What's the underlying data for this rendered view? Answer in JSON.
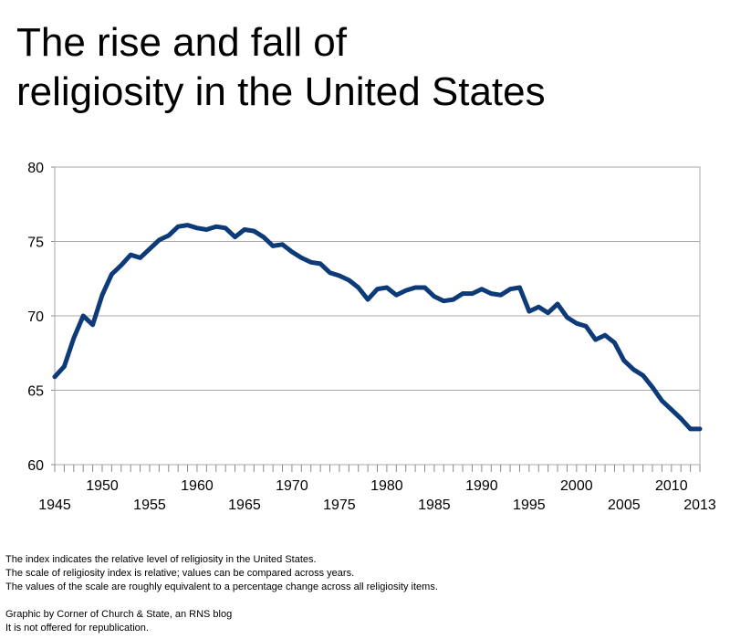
{
  "title_lines": [
    "The rise and fall of",
    "religiosity in the United States"
  ],
  "notes": [
    "The index indicates the relative level of religiosity in the United States.",
    "The scale of religiosity index is relative; values can be compared across years.",
    "The values of the scale are roughly equivalent to a percentage change across all religiosity items."
  ],
  "credits": [
    "Graphic by Corner of Church & State, an RNS blog",
    "It is not offered for republication."
  ],
  "chart_data": {
    "type": "line",
    "title": "The rise and fall of religiosity in the United States",
    "xlabel": "",
    "ylabel": "",
    "xlim": [
      1945,
      2013
    ],
    "ylim": [
      60,
      80
    ],
    "yticks": [
      60,
      65,
      70,
      75,
      80
    ],
    "xtick_labels_low": [
      1945,
      1955,
      1965,
      1975,
      1985,
      1995,
      2005,
      2013
    ],
    "xtick_labels_high": [
      1950,
      1960,
      1970,
      1980,
      1990,
      2000,
      2010
    ],
    "grid": true,
    "line_color": "#0d3a78",
    "series": [
      {
        "x": [
          1945,
          1946,
          1947,
          1948,
          1949,
          1950,
          1951,
          1952,
          1953,
          1954,
          1955,
          1956,
          1957,
          1958,
          1959,
          1960,
          1961,
          1962,
          1963,
          1964,
          1965,
          1966,
          1967,
          1968,
          1969,
          1970,
          1971,
          1972,
          1973,
          1974,
          1975,
          1976,
          1977,
          1978,
          1979,
          1980,
          1981,
          1982,
          1983,
          1984,
          1985,
          1986,
          1987,
          1988,
          1989,
          1990,
          1991,
          1992,
          1993,
          1994,
          1995,
          1996,
          1997,
          1998,
          1999,
          2000,
          2001,
          2002,
          2003,
          2004,
          2005,
          2006,
          2007,
          2008,
          2009,
          2010,
          2011,
          2012,
          2013
        ],
        "values": [
          65.9,
          66.6,
          68.5,
          70.0,
          69.4,
          71.4,
          72.8,
          73.4,
          74.1,
          73.9,
          74.5,
          75.1,
          75.4,
          76.0,
          76.1,
          75.9,
          75.8,
          76.0,
          75.9,
          75.3,
          75.8,
          75.7,
          75.3,
          74.7,
          74.8,
          74.3,
          73.9,
          73.6,
          73.5,
          72.9,
          72.7,
          72.4,
          71.9,
          71.1,
          71.8,
          71.9,
          71.4,
          71.7,
          71.9,
          71.9,
          71.3,
          71.0,
          71.1,
          71.5,
          71.5,
          71.8,
          71.5,
          71.4,
          71.8,
          71.9,
          70.3,
          70.6,
          70.2,
          70.8,
          69.9,
          69.5,
          69.3,
          68.4,
          68.7,
          68.2,
          67.0,
          66.4,
          66.0,
          65.2,
          64.3,
          63.7,
          63.1,
          62.4,
          62.4
        ]
      }
    ]
  }
}
